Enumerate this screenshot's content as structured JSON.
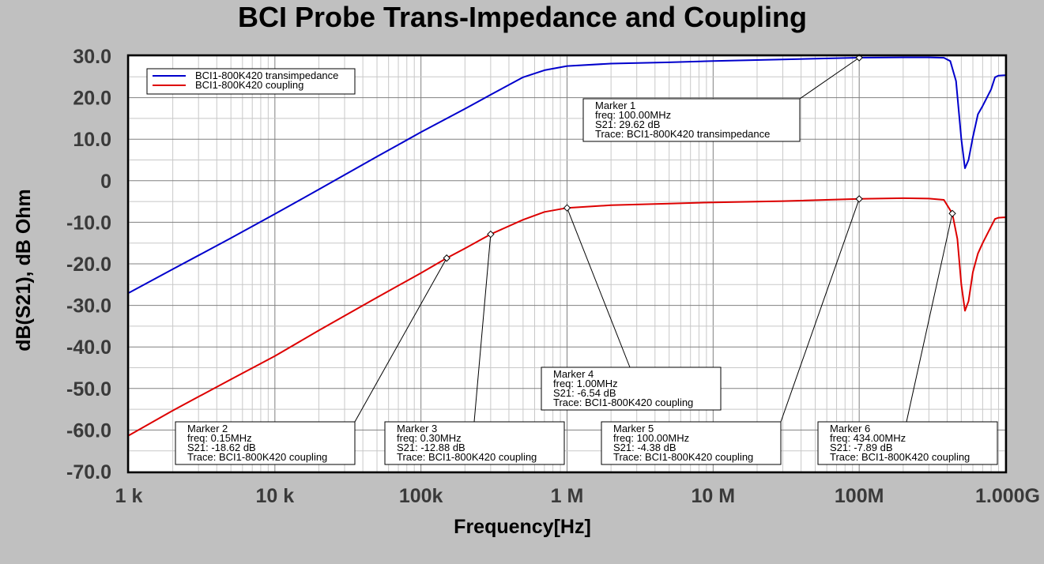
{
  "chart_data": {
    "type": "line",
    "title": "BCI Probe Trans-Impedance and Coupling",
    "xlabel": "Frequency[Hz]",
    "ylabel": "dB(S21), dB Ohm",
    "x_scale": "log",
    "xlim": [
      1000,
      1000000000
    ],
    "ylim": [
      -70,
      30
    ],
    "x_tick_values": [
      1000,
      10000,
      100000,
      1000000,
      10000000,
      100000000,
      1000000000
    ],
    "x_tick_labels": [
      "1  k",
      "10 k",
      "100k",
      "1  M",
      "10 M",
      "100M",
      "1.000G"
    ],
    "y_tick_values": [
      30,
      20,
      10,
      0,
      -10,
      -20,
      -30,
      -40,
      -50,
      -60,
      -70
    ],
    "y_tick_labels": [
      "30.0",
      "20.0",
      "10.0",
      "0",
      "-10.0",
      "-20.0",
      "-30.0",
      "-40.0",
      "-50.0",
      "-60.0",
      "-70.0"
    ],
    "grid": true,
    "legend_position": "top-left",
    "series": [
      {
        "name": "BCI1-800K420 transimpedance",
        "color": "#0000cc",
        "x": [
          1000,
          2000,
          5000,
          10000,
          20000,
          50000,
          100000,
          200000,
          300000,
          500000,
          700000,
          1000000,
          2000000,
          5000000,
          10000000,
          30000000,
          100000000,
          200000000,
          300000000,
          380000000,
          420000000,
          460000000,
          500000000,
          530000000,
          560000000,
          600000000,
          650000000,
          700000000,
          800000000,
          850000000,
          900000000,
          1000000000
        ],
        "y": [
          -27.0,
          -21.3,
          -13.8,
          -8.0,
          -2.1,
          5.8,
          11.7,
          17.3,
          20.7,
          24.9,
          26.6,
          27.6,
          28.2,
          28.5,
          28.8,
          29.2,
          29.62,
          29.7,
          29.7,
          29.6,
          28.8,
          24,
          10,
          3,
          5,
          10.5,
          16,
          18,
          22,
          24.9,
          25.3,
          25.4
        ]
      },
      {
        "name": "BCI1-800K420 coupling",
        "color": "#dd0000",
        "x": [
          1000,
          2000,
          5000,
          10000,
          20000,
          50000,
          100000,
          150000,
          200000,
          300000,
          500000,
          700000,
          1000000,
          2000000,
          5000000,
          10000000,
          30000000,
          100000000,
          200000000,
          300000000,
          380000000,
          434000000,
          470000000,
          500000000,
          530000000,
          560000000,
          600000000,
          650000000,
          700000000,
          800000000,
          850000000,
          900000000,
          1000000000
        ],
        "y": [
          -61.3,
          -55.3,
          -47.8,
          -42.2,
          -36.0,
          -28.1,
          -22.2,
          -18.62,
          -16.3,
          -12.88,
          -9.4,
          -7.5,
          -6.54,
          -5.9,
          -5.5,
          -5.2,
          -4.9,
          -4.38,
          -4.2,
          -4.3,
          -4.6,
          -7.89,
          -14,
          -25,
          -31.3,
          -29,
          -22,
          -17.5,
          -15,
          -11,
          -9.2,
          -8.9,
          -8.8
        ]
      }
    ],
    "markers": [
      {
        "name": "Marker 1",
        "freq": "freq: 100.00MHz",
        "value": "S21: 29.62 dB",
        "trace": "Trace:   BCI1-800K420 transimpedance",
        "x": 100000000,
        "y": 29.62
      },
      {
        "name": "Marker 2",
        "freq": "freq: 0.15MHz",
        "value": "S21: -18.62 dB",
        "trace": "Trace:   BCI1-800K420 coupling",
        "x": 150000,
        "y": -18.62
      },
      {
        "name": "Marker 3",
        "freq": "freq: 0.30MHz",
        "value": "S21: -12.88 dB",
        "trace": "Trace:   BCI1-800K420 coupling",
        "x": 300000,
        "y": -12.88
      },
      {
        "name": "Marker 4",
        "freq": "freq: 1.00MHz",
        "value": "S21: -6.54 dB",
        "trace": "Trace:   BCI1-800K420 coupling",
        "x": 1000000,
        "y": -6.54
      },
      {
        "name": "Marker 5",
        "freq": "freq: 100.00MHz",
        "value": "S21: -4.38 dB",
        "trace": "Trace:   BCI1-800K420 coupling",
        "x": 100000000,
        "y": -4.38
      },
      {
        "name": "Marker 6",
        "freq": "freq: 434.00MHz",
        "value": "S21: -7.89 dB",
        "trace": "Trace:   BCI1-800K420 coupling",
        "x": 434000000,
        "y": -7.89
      }
    ]
  }
}
